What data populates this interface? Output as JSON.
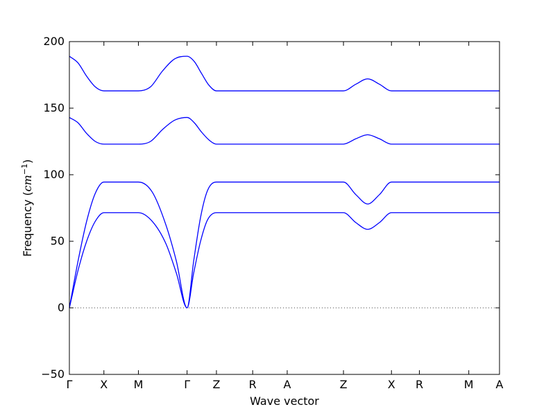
{
  "chart_data": {
    "type": "line",
    "title": "",
    "xlabel": "Wave vector",
    "ylabel_text": "Frequency (",
    "ylabel_math": "cm",
    "ylabel_sup": "−1",
    "ylabel_close": ")",
    "ylim": [
      -50,
      200
    ],
    "yticks": [
      -50,
      0,
      50,
      100,
      150,
      200
    ],
    "ytick_labels": [
      "−50",
      "0",
      "50",
      "100",
      "150",
      "200"
    ],
    "xlim": [
      0,
      12.46
    ],
    "xticks": [
      {
        "label": "Γ",
        "x": 0
      },
      {
        "label": "X",
        "x": 1.0
      },
      {
        "label": "M",
        "x": 2.0
      },
      {
        "label": "Γ",
        "x": 3.41
      },
      {
        "label": "Z",
        "x": 4.26
      },
      {
        "label": "R",
        "x": 5.31
      },
      {
        "label": "A",
        "x": 6.31
      },
      {
        "label": "Z",
        "x": 7.94
      },
      {
        "label": "X",
        "x": 9.33
      },
      {
        "label": "R",
        "x": 10.14
      },
      {
        "label": "M",
        "x": 11.57
      },
      {
        "label": "A",
        "x": 12.46
      }
    ],
    "zero_line": true,
    "series_color": "#0000ff",
    "series": [
      {
        "x": [
          0,
          0.25,
          0.5,
          0.75,
          1.0,
          1.5,
          2.0,
          2.35,
          2.7,
          3.05,
          3.41,
          3.62,
          3.83,
          4.05,
          4.26,
          5.31,
          6.31,
          7.94,
          8.3,
          8.64,
          8.98,
          9.33,
          10.14,
          11.57,
          12.46
        ],
        "y": [
          189,
          184,
          174,
          166,
          163,
          163,
          163,
          166,
          178,
          187,
          189,
          185,
          176,
          167,
          163,
          163,
          163,
          163,
          168,
          172,
          168,
          163,
          163,
          163,
          163
        ]
      },
      {
        "x": [
          0,
          0.25,
          0.5,
          0.75,
          1.0,
          1.5,
          2.0,
          2.35,
          2.7,
          3.05,
          3.41,
          3.62,
          3.83,
          4.05,
          4.26,
          5.31,
          6.31,
          7.94,
          8.3,
          8.64,
          8.98,
          9.33,
          10.14,
          11.57,
          12.46
        ],
        "y": [
          143,
          139,
          131,
          125,
          123,
          123,
          123,
          125,
          134,
          141,
          143,
          139,
          132,
          126,
          123,
          123,
          123,
          123,
          127,
          130,
          127,
          123,
          123,
          123,
          123
        ]
      },
      {
        "x": [
          0,
          0.25,
          0.5,
          0.75,
          1.0,
          1.5,
          2.0,
          2.4,
          2.8,
          3.1,
          3.41,
          3.6,
          3.8,
          4.0,
          4.26,
          5.31,
          6.31,
          7.94,
          8.3,
          8.64,
          8.98,
          9.33,
          10.14,
          11.57,
          12.46
        ],
        "y": [
          0,
          35,
          65,
          86,
          94.5,
          94.5,
          94.5,
          87,
          62,
          35,
          0,
          35,
          68,
          88,
          94.5,
          94.5,
          94.5,
          94.5,
          85,
          78,
          85,
          94.5,
          94.5,
          94.5,
          94.5
        ]
      },
      {
        "x": [
          0,
          0.25,
          0.5,
          0.75,
          1.0,
          1.5,
          2.0,
          2.4,
          2.8,
          3.1,
          3.41,
          3.6,
          3.8,
          4.0,
          4.26,
          5.31,
          6.31,
          7.94,
          8.3,
          8.64,
          8.98,
          9.33,
          10.14,
          11.57,
          12.46
        ],
        "y": [
          0,
          28,
          50,
          65,
          71.5,
          71.5,
          71.5,
          65,
          48,
          26,
          0,
          26,
          50,
          66,
          71.5,
          71.5,
          71.5,
          71.5,
          64,
          59,
          64,
          71.5,
          71.5,
          71.5,
          71.5
        ]
      }
    ]
  }
}
